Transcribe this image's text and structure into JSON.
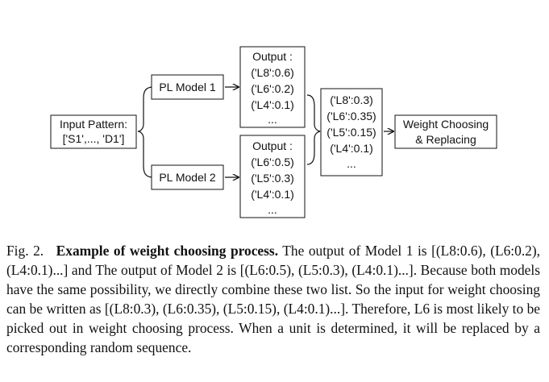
{
  "diagram": {
    "input": [
      "Input Pattern:",
      "['S1',..., 'D1']"
    ],
    "model1": "PL Model 1",
    "model2": "PL Model 2",
    "output1": [
      "Output :",
      "('L8':0.6)",
      "('L6':0.2)",
      "('L4':0.1)",
      "..."
    ],
    "output2": [
      "Output :",
      "('L6':0.5)",
      "('L5':0.3)",
      "('L4':0.1)",
      "..."
    ],
    "combined": [
      "('L8':0.3)",
      "('L6':0.35)",
      "('L5':0.15)",
      "('L4':0.1)",
      "..."
    ],
    "weight": [
      "Weight Choosing",
      "& Replacing"
    ]
  },
  "caption": {
    "label": "Fig. 2.",
    "title": "Example of weight choosing process.",
    "body": "The output of Model 1 is [(L8:0.6), (L6:0.2), (L4:0.1)...] and The output of Model 2 is [(L6:0.5), (L5:0.3), (L4:0.1)...]. Because both models have the same possibility, we directly combine these two list. So the input for weight choosing can be written as [(L8:0.3), (L6:0.35), (L5:0.15), (L4:0.1)...]. Therefore, L6 is most likely to be picked out in weight choosing process. When a unit is determined, it will be replaced by a corresponding random sequence."
  }
}
